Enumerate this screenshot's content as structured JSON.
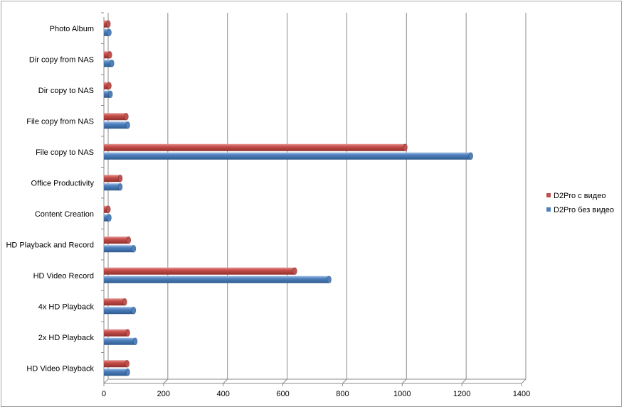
{
  "chart_data": {
    "type": "bar",
    "orientation": "horizontal",
    "style": "3d-cylinder",
    "title": "",
    "xlabel": "",
    "ylabel": "",
    "xlim": [
      0,
      1400
    ],
    "xticks": [
      0,
      200,
      400,
      600,
      800,
      1000,
      1200,
      1400
    ],
    "grid": true,
    "legend_position": "right",
    "categories": [
      "Photo Album",
      "Dir copy from NAS",
      "Dir copy to NAS",
      "File copy from NAS",
      "File copy to NAS",
      "Office Productivity",
      "Content Creation",
      "HD Playback and Record",
      "HD Video Record",
      "4x HD Playback",
      "2x HD Playback",
      "HD Video Playback"
    ],
    "series": [
      {
        "name": "D2Pro с видео",
        "color": "#c0504d",
        "values": [
          15,
          20,
          18,
          75,
          1010,
          55,
          15,
          83,
          640,
          70,
          80,
          78
        ]
      },
      {
        "name": "D2Pro без видео",
        "color": "#4f81bd",
        "values": [
          18,
          27,
          22,
          80,
          1230,
          55,
          18,
          100,
          755,
          100,
          105,
          80
        ]
      }
    ]
  }
}
